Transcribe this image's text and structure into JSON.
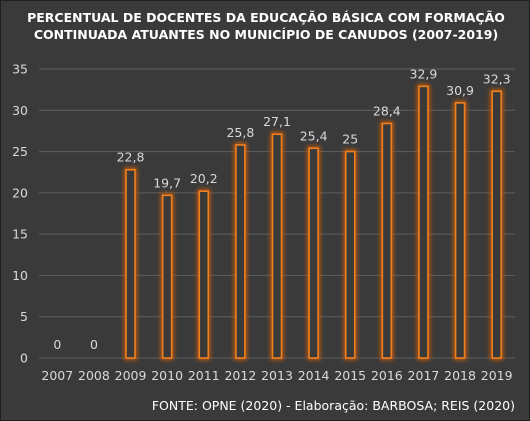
{
  "chart_data": {
    "type": "bar",
    "title_lines": [
      "PERCENTUAL DE DOCENTES DA EDUCAÇÃO BÁSICA COM FORMAÇÃO",
      "CONTINUADA ATUANTES NO MUNICÍPIO DE CANUDOS (2007-2019)"
    ],
    "categories": [
      "2007",
      "2008",
      "2009",
      "2010",
      "2011",
      "2012",
      "2013",
      "2014",
      "2015",
      "2016",
      "2017",
      "2018",
      "2019"
    ],
    "values": [
      0,
      0,
      22.8,
      19.7,
      20.2,
      25.8,
      27.1,
      25.4,
      25,
      28.4,
      32.9,
      30.9,
      32.3
    ],
    "value_labels": [
      "0",
      "0",
      "22,8",
      "19,7",
      "20,2",
      "25,8",
      "27,1",
      "25,4",
      "25",
      "28,4",
      "32,9",
      "30,9",
      "32,3"
    ],
    "y_ticks": [
      0,
      5,
      10,
      15,
      20,
      25,
      30,
      35
    ],
    "ylim": [
      0,
      35
    ],
    "xlabel": "",
    "ylabel": "",
    "grid": true,
    "legend": "none",
    "source": "FONTE: OPNE (2020) - Elaboração: BARBOSA; REIS (2020)"
  },
  "colors": {
    "background": "#3a3a3a",
    "gridline": "#5e5e5e",
    "bar_outline": "#f0801c",
    "bar_glow": "#c85a10",
    "bar_fill": "#3a3a3a",
    "text": "#d9d9d9",
    "title": "#ffffff"
  }
}
